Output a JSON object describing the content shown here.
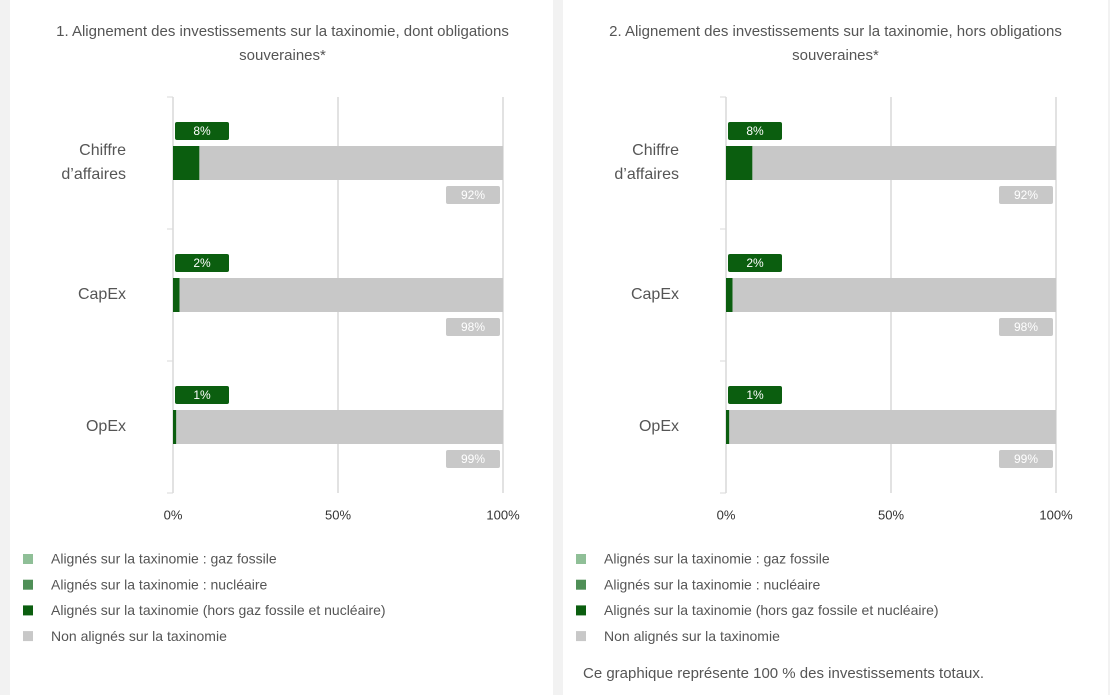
{
  "chart_data": [
    {
      "type": "bar",
      "orientation": "horizontal",
      "stacked": true,
      "title": "1. Alignement des investissements sur la taxinomie, dont obligations souveraines*",
      "categories": [
        "Chiffre d’affaires",
        "CapEx",
        "OpEx"
      ],
      "series": [
        {
          "name": "Alignés sur la taxinomie : gaz fossile",
          "color": "#8fbf97",
          "values": [
            0,
            0,
            0
          ]
        },
        {
          "name": "Alignés sur la taxinomie : nucléaire",
          "color": "#4f8f57",
          "values": [
            0,
            0,
            0
          ]
        },
        {
          "name": "Alignés sur la taxinomie (hors gaz fossile et nucléaire)",
          "color": "#0b5e0f",
          "values": [
            8,
            2,
            1
          ],
          "value_labels": [
            "8%",
            "2%",
            "1%"
          ]
        },
        {
          "name": "Non alignés sur la taxinomie",
          "color": "#c8c8c8",
          "values": [
            92,
            98,
            99
          ],
          "value_labels": [
            "92%",
            "98%",
            "99%"
          ]
        }
      ],
      "xlim": [
        0,
        100
      ],
      "xticks": [
        {
          "value": 0,
          "label": "0%"
        },
        {
          "value": 50,
          "label": "50%"
        },
        {
          "value": 100,
          "label": "100%"
        }
      ],
      "grid": true,
      "legend": "bottom"
    },
    {
      "type": "bar",
      "orientation": "horizontal",
      "stacked": true,
      "title": "2. Alignement des investissements sur la taxinomie, hors obligations souveraines*",
      "categories": [
        "Chiffre d’affaires",
        "CapEx",
        "OpEx"
      ],
      "series": [
        {
          "name": "Alignés sur la taxinomie : gaz fossile",
          "color": "#8fbf97",
          "values": [
            0,
            0,
            0
          ]
        },
        {
          "name": "Alignés sur la taxinomie : nucléaire",
          "color": "#4f8f57",
          "values": [
            0,
            0,
            0
          ]
        },
        {
          "name": "Alignés sur la taxinomie (hors gaz fossile et nucléaire)",
          "color": "#0b5e0f",
          "values": [
            8,
            2,
            1
          ],
          "value_labels": [
            "8%",
            "2%",
            "1%"
          ]
        },
        {
          "name": "Non alignés sur la taxinomie",
          "color": "#c8c8c8",
          "values": [
            92,
            98,
            99
          ],
          "value_labels": [
            "92%",
            "98%",
            "99%"
          ]
        }
      ],
      "xlim": [
        0,
        100
      ],
      "xticks": [
        {
          "value": 0,
          "label": "0%"
        },
        {
          "value": 50,
          "label": "50%"
        },
        {
          "value": 100,
          "label": "100%"
        }
      ],
      "grid": true,
      "legend": "bottom",
      "note": "Ce graphique représente 100 % des investissements totaux."
    }
  ]
}
